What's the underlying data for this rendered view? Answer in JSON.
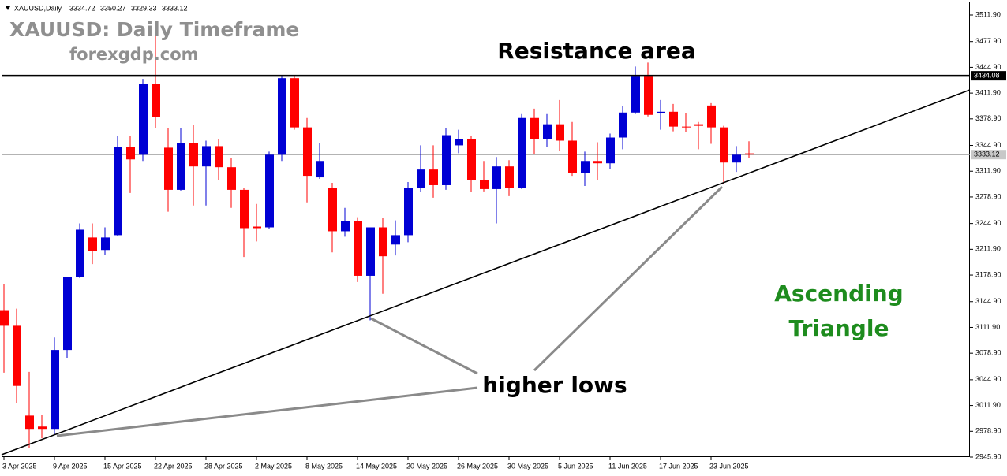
{
  "chart_data": {
    "type": "candlestick",
    "symbol": "XAUUSD,Daily",
    "title": "XAUUSD: Daily Timeframe",
    "subtitle": "forexgdp.com",
    "annotations": {
      "resistance": "Resistance area",
      "pattern": [
        "Ascending",
        "Triangle"
      ],
      "lows": "higher lows"
    },
    "categories": [
      "3 Apr 2025",
      null,
      null,
      null,
      "9 Apr 2025",
      null,
      null,
      null,
      "15 Apr 2025",
      null,
      null,
      null,
      "22 Apr 2025",
      null,
      null,
      null,
      "28 Apr 2025",
      null,
      null,
      null,
      "2 May 2025",
      null,
      null,
      null,
      "8 May 2025",
      null,
      null,
      null,
      "14 May 2025",
      null,
      null,
      null,
      "20 May 2025",
      null,
      null,
      null,
      "26 May 2025",
      null,
      null,
      null,
      "30 May 2025",
      null,
      null,
      null,
      "5 Jun 2025",
      null,
      null,
      null,
      "11 Jun 2025",
      null,
      null,
      null,
      "17 Jun 2025",
      null,
      null,
      null,
      "23 Jun 2025",
      null,
      null,
      null
    ],
    "open": [
      3134,
      3114,
      2999,
      2985,
      2982,
      3083,
      3176,
      3227,
      3211,
      3230,
      3343,
      3333,
      3424,
      3342,
      3288,
      3348,
      3318,
      3344,
      3317,
      3288,
      3241,
      3240,
      3333,
      3431,
      3368,
      3304,
      3290,
      3235,
      3248,
      3178,
      3240,
      3218,
      3230,
      3290,
      3314,
      3294,
      3345,
      3353,
      3301,
      3289,
      3318,
      3290,
      3380,
      3353,
      3372,
      3351,
      3310,
      3325,
      3322,
      3355,
      3387,
      3433,
      3386,
      3388,
      3369,
      3372,
      3396,
      3368,
      3323,
      3334.72
    ],
    "high": [
      3167,
      3136,
      3055,
      3000,
      3099,
      3176,
      3245,
      3245,
      3240,
      3357,
      3357,
      3430,
      3500,
      3367,
      3367,
      3371,
      3351,
      3353,
      3329,
      3290,
      3270,
      3337,
      3435,
      3435,
      3380,
      3348,
      3297,
      3265,
      3253,
      3240,
      3252,
      3249,
      3298,
      3345,
      3345,
      3367,
      3365,
      3357,
      3325,
      3330,
      3326,
      3385,
      3392,
      3385,
      3403,
      3375,
      3337,
      3349,
      3360,
      3395,
      3446,
      3451,
      3403,
      3398,
      3386,
      3375,
      3399,
      3370,
      3344,
      3350.27
    ],
    "low": [
      3054,
      3015,
      2957,
      2970,
      2975,
      3073,
      3175,
      3193,
      3205,
      3229,
      3284,
      3325,
      3367,
      3260,
      3287,
      3268,
      3268,
      3300,
      3265,
      3202,
      3222,
      3238,
      3325,
      3365,
      3272,
      3302,
      3208,
      3228,
      3170,
      3121,
      3155,
      3204,
      3221,
      3285,
      3278,
      3288,
      3335,
      3285,
      3286,
      3245,
      3280,
      3289,
      3334,
      3343,
      3338,
      3306,
      3293,
      3300,
      3315,
      3340,
      3385,
      3382,
      3365,
      3363,
      3362,
      3340,
      3347,
      3295,
      3311,
      3329.33
    ],
    "close": [
      3114,
      3037,
      2982,
      2982,
      3083,
      3176,
      3237,
      3210,
      3227,
      3343,
      3327,
      3424,
      3381,
      3288,
      3348,
      3318,
      3344,
      3317,
      3288,
      3239,
      3239,
      3333,
      3431,
      3368,
      3306,
      3325,
      3235,
      3248,
      3178,
      3240,
      3203,
      3230,
      3290,
      3314,
      3294,
      3358,
      3353,
      3301,
      3289,
      3318,
      3290,
      3380,
      3353,
      3372,
      3351,
      3310,
      3325,
      3322,
      3355,
      3387,
      3433,
      3384,
      3388,
      3369,
      3368,
      3370,
      3368,
      3323,
      3333,
      3333.12
    ],
    "up_color": "#0000d4",
    "down_color": "#ff0000",
    "resistance": 3434.08,
    "ylim": [
      2945.9,
      3529.05
    ],
    "yticks": [
      {
        "value": 2945.9,
        "label": "2945.90"
      },
      {
        "value": 2978.9,
        "label": "2978.90"
      },
      {
        "value": 3011.9,
        "label": "3011.90"
      },
      {
        "value": 3044.9,
        "label": "3044.90"
      },
      {
        "value": 3078.9,
        "label": "3078.90"
      },
      {
        "value": 3111.9,
        "label": "3111.90"
      },
      {
        "value": 3144.9,
        "label": "3144.90"
      },
      {
        "value": 3178.9,
        "label": "3178.90"
      },
      {
        "value": 3211.9,
        "label": "3211.90"
      },
      {
        "value": 3244.9,
        "label": "3244.90"
      },
      {
        "value": 3278.9,
        "label": "3278.90"
      },
      {
        "value": 3311.9,
        "label": "3311.90"
      },
      {
        "value": 3344.9,
        "label": "3344.90"
      },
      {
        "value": 3378.9,
        "label": "3378.90"
      },
      {
        "value": 3411.9,
        "label": "3411.90"
      },
      {
        "value": 3444.9,
        "label": "3444.90"
      },
      {
        "value": 3477.9,
        "label": "3477.90"
      },
      {
        "value": 3511.9,
        "label": "3511.90"
      }
    ]
  }
}
